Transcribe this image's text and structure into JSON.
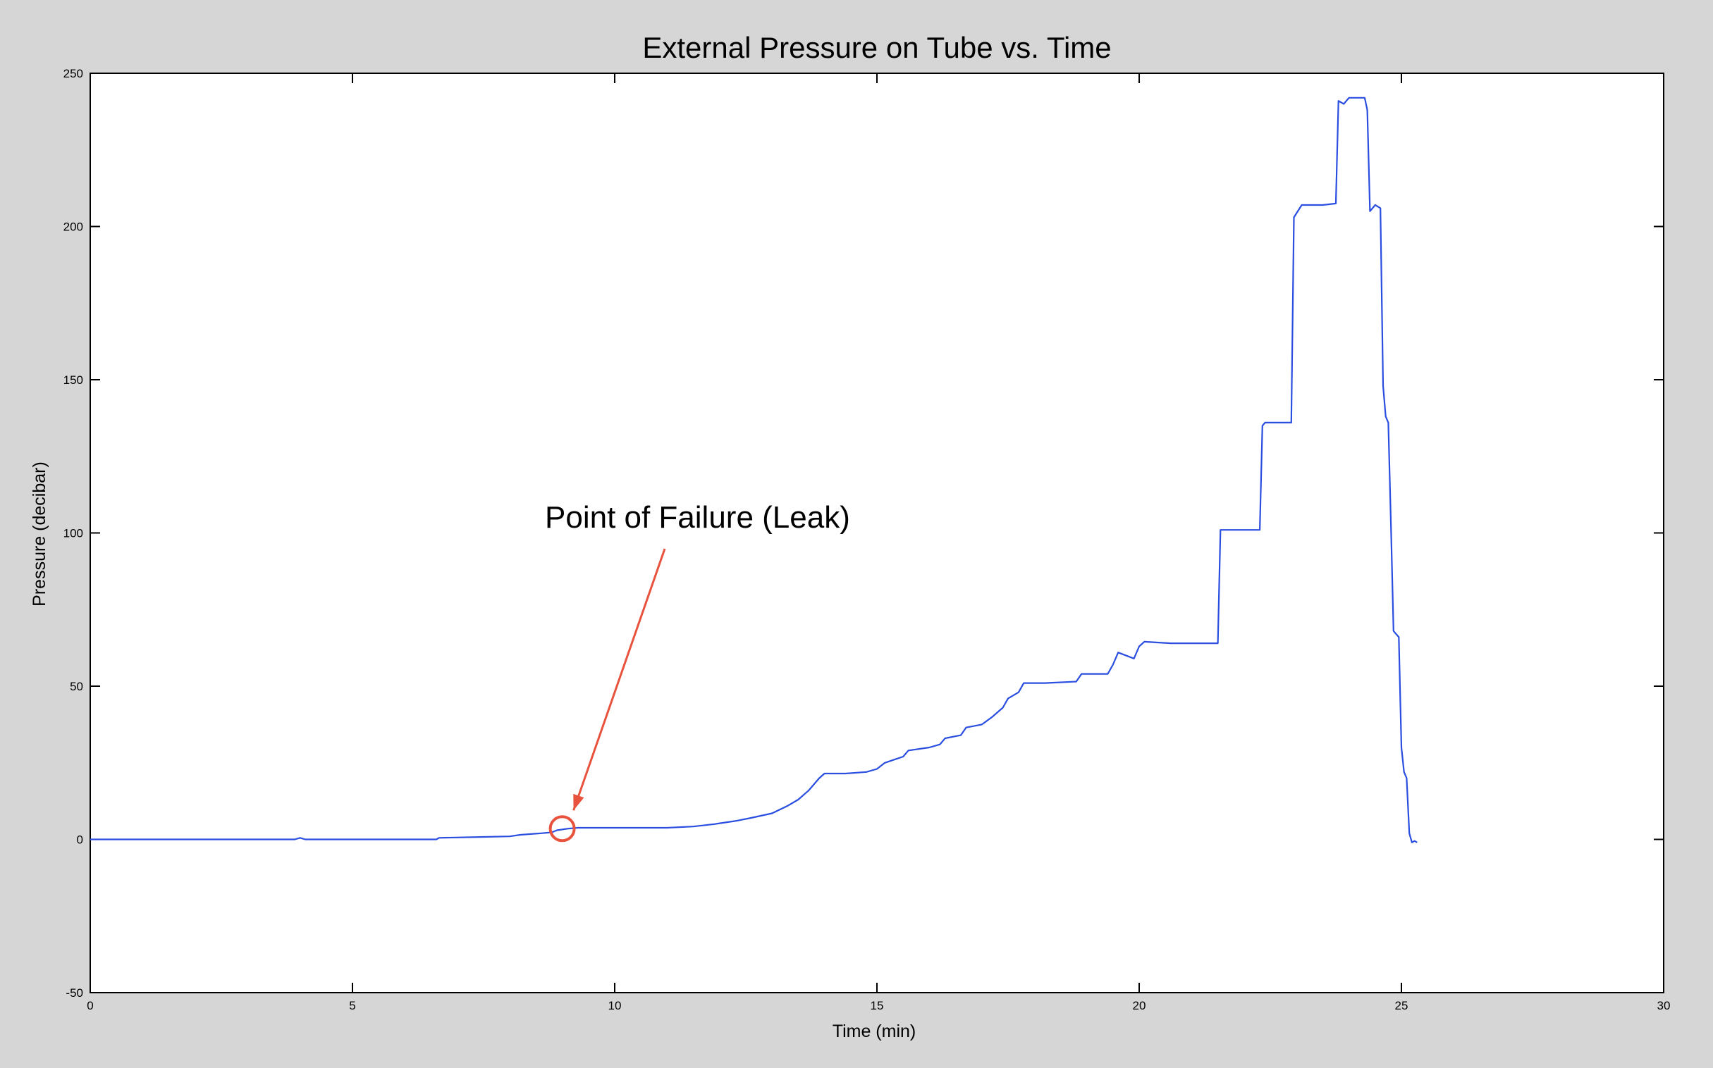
{
  "chart_data": {
    "type": "line",
    "title": "External Pressure on Tube vs. Time",
    "xlabel": "Time (min)",
    "ylabel": "Pressure (decibar)",
    "xlim": [
      0,
      30
    ],
    "ylim": [
      -50,
      250
    ],
    "xticks": [
      0,
      5,
      10,
      15,
      20,
      25,
      30
    ],
    "yticks": [
      -50,
      0,
      50,
      100,
      150,
      200,
      250
    ],
    "grid": false,
    "line_color": "#2a4ee0",
    "annotation": {
      "text": "Point of Failure (Leak)",
      "x": 9.0,
      "y": 3.5,
      "color": "#e8533d"
    },
    "series": [
      {
        "points": [
          [
            0,
            0
          ],
          [
            3.9,
            0
          ],
          [
            4.0,
            0.5
          ],
          [
            4.1,
            0
          ],
          [
            5.5,
            0
          ],
          [
            6.6,
            0
          ],
          [
            6.65,
            0.5
          ],
          [
            7.5,
            0.8
          ],
          [
            8.0,
            1.0
          ],
          [
            8.2,
            1.5
          ],
          [
            8.6,
            2.0
          ],
          [
            8.8,
            2.3
          ],
          [
            8.9,
            3.0
          ],
          [
            9.1,
            3.5
          ],
          [
            9.3,
            3.8
          ],
          [
            10.0,
            3.8
          ],
          [
            11.0,
            3.8
          ],
          [
            11.5,
            4.2
          ],
          [
            11.9,
            5.0
          ],
          [
            12.3,
            6.0
          ],
          [
            12.6,
            7.0
          ],
          [
            13.0,
            8.5
          ],
          [
            13.3,
            11.0
          ],
          [
            13.5,
            13.0
          ],
          [
            13.7,
            16.0
          ],
          [
            13.9,
            20.0
          ],
          [
            14.0,
            21.5
          ],
          [
            14.4,
            21.5
          ],
          [
            14.8,
            22.0
          ],
          [
            15.0,
            23.0
          ],
          [
            15.15,
            25.0
          ],
          [
            15.5,
            27.0
          ],
          [
            15.6,
            29.0
          ],
          [
            16.0,
            30.0
          ],
          [
            16.2,
            31.0
          ],
          [
            16.3,
            33.0
          ],
          [
            16.6,
            34.0
          ],
          [
            16.7,
            36.5
          ],
          [
            17.0,
            37.5
          ],
          [
            17.2,
            40.0
          ],
          [
            17.4,
            43.0
          ],
          [
            17.5,
            46.0
          ],
          [
            17.7,
            48.0
          ],
          [
            17.8,
            51.0
          ],
          [
            18.2,
            51.0
          ],
          [
            18.8,
            51.5
          ],
          [
            18.9,
            54.0
          ],
          [
            19.4,
            54.0
          ],
          [
            19.5,
            57.0
          ],
          [
            19.6,
            61.0
          ],
          [
            19.9,
            59.0
          ],
          [
            20.0,
            63.0
          ],
          [
            20.1,
            64.5
          ],
          [
            20.6,
            64.0
          ],
          [
            21.2,
            64.0
          ],
          [
            21.5,
            64.0
          ],
          [
            21.55,
            101.0
          ],
          [
            21.8,
            101.0
          ],
          [
            22.3,
            101.0
          ],
          [
            22.35,
            135.0
          ],
          [
            22.4,
            136.0
          ],
          [
            22.9,
            136.0
          ],
          [
            22.95,
            203.0
          ],
          [
            23.1,
            207.0
          ],
          [
            23.5,
            207.0
          ],
          [
            23.75,
            207.5
          ],
          [
            23.8,
            241.0
          ],
          [
            23.9,
            240.0
          ],
          [
            24.0,
            242.0
          ],
          [
            24.3,
            242.0
          ],
          [
            24.35,
            238.0
          ],
          [
            24.4,
            205.0
          ],
          [
            24.5,
            207.0
          ],
          [
            24.6,
            206.0
          ],
          [
            24.65,
            148.0
          ],
          [
            24.7,
            138.0
          ],
          [
            24.75,
            136.0
          ],
          [
            24.8,
            103.0
          ],
          [
            24.85,
            68.0
          ],
          [
            24.95,
            66.0
          ],
          [
            25.0,
            30.0
          ],
          [
            25.05,
            22.0
          ],
          [
            25.1,
            20.0
          ],
          [
            25.15,
            2.0
          ],
          [
            25.2,
            -1.0
          ],
          [
            25.25,
            -0.5
          ],
          [
            25.3,
            -1.0
          ]
        ]
      }
    ]
  }
}
